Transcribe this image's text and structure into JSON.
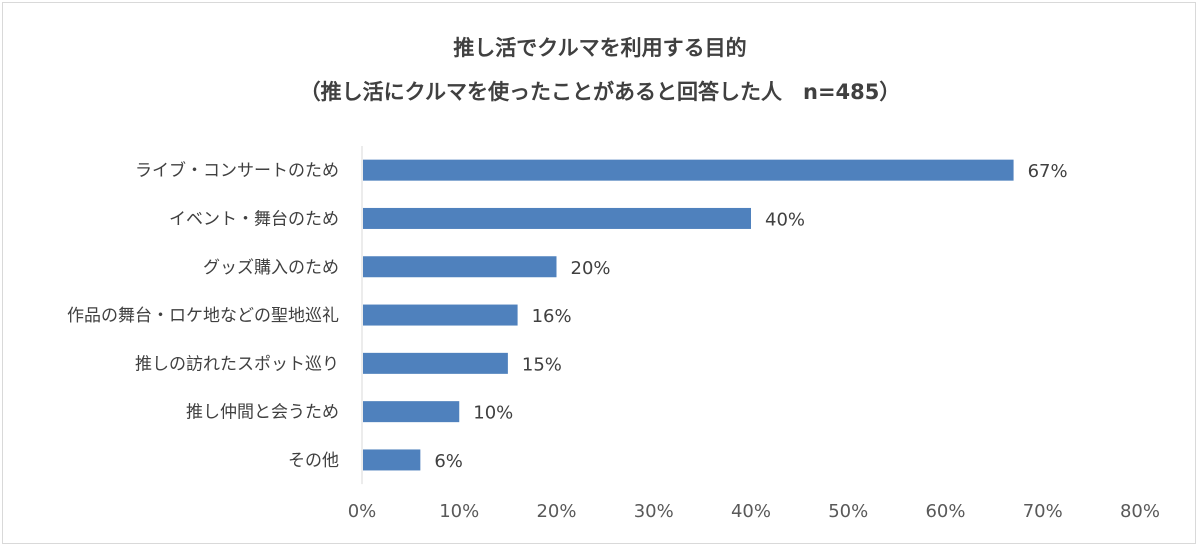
{
  "chart_data": {
    "type": "bar",
    "orientation": "horizontal",
    "title": "推し活でクルマを利用する目的",
    "subtitle": "（推し活にクルマを使ったことがあると回答した人　n=485）",
    "categories": [
      "ライブ・コンサートのため",
      "イベント・舞台のため",
      "グッズ購入のため",
      "作品の舞台・ロケ地などの聖地巡礼",
      "推しの訪れたスポット巡り",
      "推し仲間と会うため",
      "その他"
    ],
    "values": [
      67,
      40,
      20,
      16,
      15,
      10,
      6
    ],
    "data_labels": [
      "67%",
      "40%",
      "20%",
      "16%",
      "15%",
      "10%",
      "6%"
    ],
    "xlim": [
      0,
      80
    ],
    "x_ticks": [
      "0%",
      "10%",
      "20%",
      "30%",
      "40%",
      "50%",
      "60%",
      "70%",
      "80%"
    ],
    "bar_color": "#4f81bd",
    "axis_color": "#d9d9d9",
    "grid": false,
    "legend": "none"
  }
}
